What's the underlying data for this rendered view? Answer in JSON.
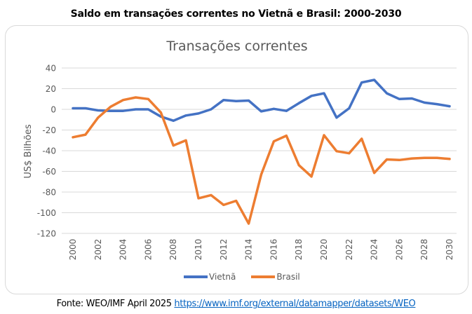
{
  "header": {
    "title": "Saldo em transações correntes no Vietnã e Brasil: 2000-2030"
  },
  "footer": {
    "source_label": "Fonte: WEO/IMF April 2025",
    "link_text": "https://www.imf.org/external/datamapper/datasets/WEO"
  },
  "colors": {
    "vietna": "#4472c4",
    "brasil": "#ed7d31",
    "grid": "#d9d9d9",
    "link": "#0563c1"
  },
  "chart_data": {
    "type": "line",
    "title": "Transações correntes",
    "xlabel": "",
    "ylabel": "US$ Bilhões",
    "ylim": [
      -120,
      40
    ],
    "yticks": [
      40,
      20,
      0,
      -20,
      -40,
      -60,
      -80,
      -100,
      -120
    ],
    "xlim": [
      2000,
      2030
    ],
    "x": [
      2000,
      2001,
      2002,
      2003,
      2004,
      2005,
      2006,
      2007,
      2008,
      2009,
      2010,
      2011,
      2012,
      2013,
      2014,
      2015,
      2016,
      2017,
      2018,
      2019,
      2020,
      2021,
      2022,
      2023,
      2024,
      2025,
      2026,
      2027,
      2028,
      2029,
      2030
    ],
    "xtick_labels": [
      "2000",
      "2002",
      "2004",
      "2006",
      "2008",
      "2010",
      "2012",
      "2014",
      "2016",
      "2018",
      "2020",
      "2022",
      "2024",
      "2026",
      "2028",
      "2030"
    ],
    "grid": true,
    "legend_position": "bottom",
    "series": [
      {
        "name": "Vietnã",
        "values": [
          1,
          1,
          -1,
          -1.5,
          -1.5,
          0,
          0,
          -7,
          -11,
          -6,
          -4,
          0,
          9,
          8,
          8.5,
          -2,
          0.5,
          -1.5,
          6,
          13,
          15.5,
          -8,
          1,
          26,
          28.5,
          15.5,
          10,
          10.5,
          6.5,
          5,
          3
        ]
      },
      {
        "name": "Brasil",
        "values": [
          -27,
          -24.5,
          -8,
          2.5,
          9,
          11.5,
          10,
          -3,
          -35,
          -30,
          -86,
          -83,
          -92.5,
          -88.5,
          -110.5,
          -63,
          -31,
          -25.5,
          -54,
          -65,
          -25,
          -40.5,
          -42.5,
          -28.5,
          -61.5,
          -48.5,
          -49,
          -47.5,
          -47,
          -47,
          -48
        ]
      }
    ]
  }
}
